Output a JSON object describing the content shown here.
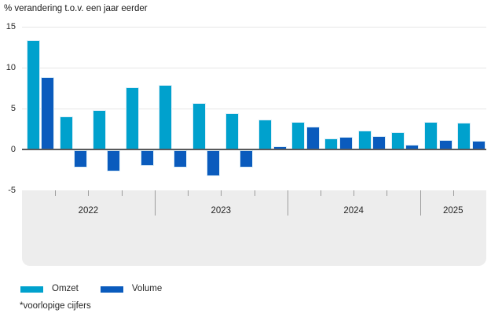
{
  "chart_data": {
    "type": "bar",
    "title": "% verandering t.o.v. een jaar eerder",
    "categories": [
      "2022-I",
      "2022-II",
      "2022-III",
      "2022-IV",
      "2023-I",
      "2023-II",
      "2023-III",
      "2023-IV",
      "2024-I",
      "2024-II",
      "2024-III",
      "2024-IV",
      "2025-I",
      "2025-II"
    ],
    "series": [
      {
        "name": "Omzet",
        "color": "#00a1cd",
        "values": [
          13.4,
          4.0,
          4.8,
          7.6,
          7.9,
          5.7,
          4.4,
          3.7,
          3.4,
          1.3,
          2.3,
          2.1,
          3.4,
          3.3
        ]
      },
      {
        "name": "Volume",
        "color": "#0a5bbd",
        "values": [
          8.8,
          -2.1,
          -2.6,
          -1.9,
          -2.1,
          -3.2,
          -2.1,
          0.4,
          2.8,
          1.5,
          1.6,
          0.6,
          1.2,
          1.1
        ]
      }
    ],
    "x_years": [
      {
        "label": "2022",
        "quarters": 4
      },
      {
        "label": "2023",
        "quarters": 4
      },
      {
        "label": "2024",
        "quarters": 4
      },
      {
        "label": "2025",
        "quarters": 2
      }
    ],
    "yticks": [
      15,
      10,
      5,
      0,
      -5
    ],
    "ylim": [
      -5,
      15
    ],
    "grid": true,
    "legend_position": "bottom"
  },
  "legend": {
    "omzet_label": "Omzet",
    "volume_label": "Volume"
  },
  "footnote": "*voorlopige cijfers",
  "logo": {
    "name": "cbs-logo"
  },
  "colors": {
    "omzet": "#00a1cd",
    "volume": "#0a5bbd",
    "band": "#ededed",
    "zero_axis": "#58595b",
    "gridline": "#e6e6e6"
  }
}
